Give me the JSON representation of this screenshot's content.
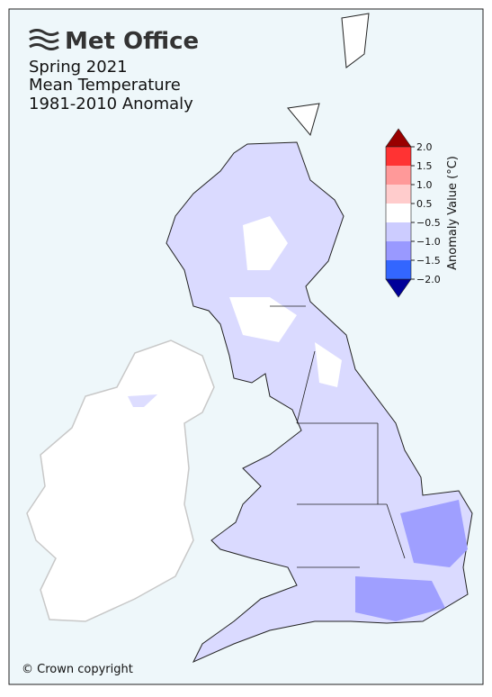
{
  "logo": "Met Office",
  "title": [
    "Spring 2021",
    "Mean Temperature",
    "1981-2010 Anomaly"
  ],
  "colorbar": {
    "label": "Anomaly Value (°C)",
    "ticks": [
      {
        "value": 2.0,
        "label": "2.0"
      },
      {
        "value": 1.5,
        "label": "1.5"
      },
      {
        "value": 1.0,
        "label": "1.0"
      },
      {
        "value": 0.5,
        "label": "0.5"
      },
      {
        "value": -0.5,
        "label": "−0.5"
      },
      {
        "value": -1.0,
        "label": "−1.0"
      },
      {
        "value": -1.5,
        "label": "−1.5"
      },
      {
        "value": -2.0,
        "label": "−2.0"
      }
    ],
    "colors": [
      "#ff3333",
      "#ff9999",
      "#ffcccc",
      "#ffffff",
      "#ccccff",
      "#9999ff",
      "#3366ff"
    ],
    "over_color": "#990000",
    "under_color": "#000099"
  },
  "copyright": "© Crown copyright"
}
